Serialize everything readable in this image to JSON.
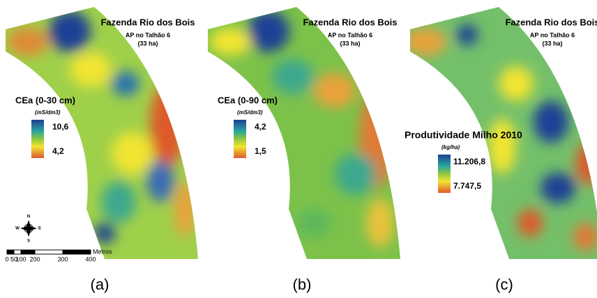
{
  "panels": [
    {
      "title": "Fazenda Rio dos Bois",
      "subtitle": "AP no Talhão 6",
      "area": "(33 ha)",
      "legend": {
        "title": "CEa  (0-30 cm)",
        "unit": "(mS/dm3)",
        "max": "10,6",
        "min": "4,2"
      },
      "caption": "(a)"
    },
    {
      "title": "Fazenda Rio dos Bois",
      "subtitle": "AP no Talhão 6",
      "area": "(33 ha)",
      "legend": {
        "title": "CEa  (0-90 cm)",
        "unit": "(mS/dm3)",
        "max": "4,2",
        "min": "1,5"
      },
      "caption": "(b)"
    },
    {
      "title": "Fazenda Rio dos Bois",
      "subtitle": "AP no Talhão 6",
      "area": "(33 ha)",
      "legend": {
        "title": "Produtividade Milho 2010",
        "unit": "(kg/ha)",
        "max": "11.206,8",
        "min": "7.747,5"
      },
      "caption": "(c)"
    }
  ],
  "scale_bar": {
    "ticks": [
      "0",
      "50",
      "100",
      "200",
      "300",
      "400"
    ],
    "unit": "Metros"
  },
  "compass": {
    "n": "N",
    "s": "S",
    "e": "E",
    "w": "W"
  }
}
